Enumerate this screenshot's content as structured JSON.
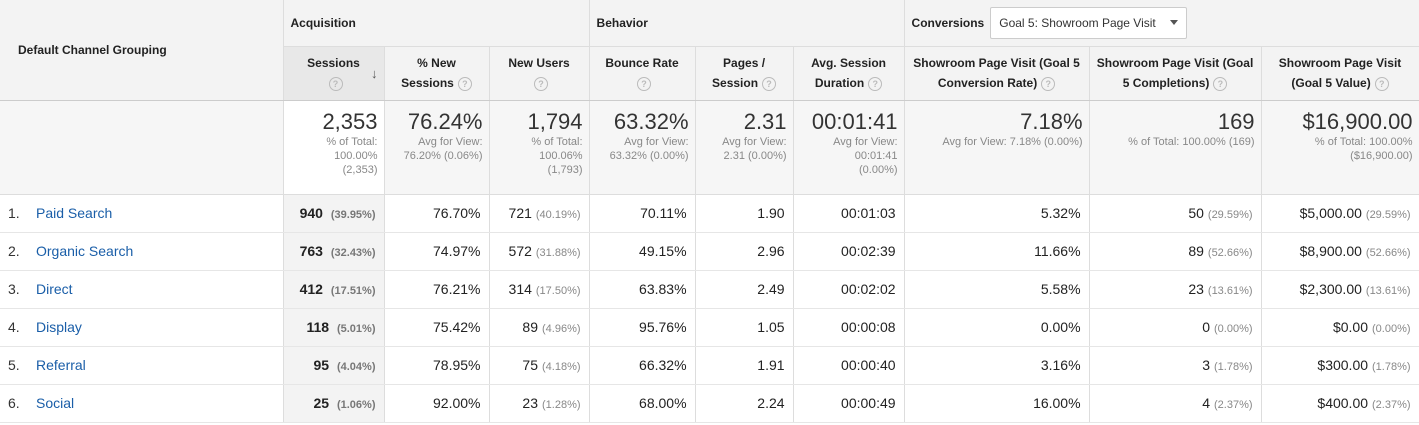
{
  "header": {
    "dimension_label": "Default Channel Grouping",
    "groups": {
      "acquisition": "Acquisition",
      "behavior": "Behavior",
      "conversions": "Conversions"
    },
    "goal_dropdown": "Goal 5: Showroom Page Visit",
    "columns": {
      "sessions": "Sessions",
      "new_sessions_1": "% New",
      "new_sessions_2": "Sessions",
      "new_users": "New Users",
      "bounce_rate": "Bounce Rate",
      "pages_1": "Pages /",
      "pages_2": "Session",
      "duration_1": "Avg. Session",
      "duration_2": "Duration",
      "conv_rate_1": "Showroom Page Visit (Goal 5",
      "conv_rate_2": "Conversion Rate)",
      "completions_1": "Showroom Page Visit (Goal",
      "completions_2": "5 Completions)",
      "value_1": "Showroom Page Visit",
      "value_2": "(Goal 5 Value)"
    }
  },
  "totals": {
    "sessions": {
      "big": "2,353",
      "l1": "% of Total:",
      "l2": "100.00%",
      "l3": "(2,353)"
    },
    "new_sessions": {
      "big": "76.24%",
      "l1": "Avg for View:",
      "l2": "76.20% (0.06%)"
    },
    "new_users": {
      "big": "1,794",
      "l1": "% of Total:",
      "l2": "100.06%",
      "l3": "(1,793)"
    },
    "bounce_rate": {
      "big": "63.32%",
      "l1": "Avg for View:",
      "l2": "63.32% (0.00%)"
    },
    "pages": {
      "big": "2.31",
      "l1": "Avg for View:",
      "l2": "2.31 (0.00%)"
    },
    "duration": {
      "big": "00:01:41",
      "l1": "Avg for View:",
      "l2": "00:01:41",
      "l3": "(0.00%)"
    },
    "conv_rate": {
      "big": "7.18%",
      "l1": "Avg for View: 7.18% (0.00%)"
    },
    "completions": {
      "big": "169",
      "l1": "% of Total: 100.00% (169)"
    },
    "value": {
      "big": "$16,900.00",
      "l1": "% of Total: 100.00%",
      "l2": "($16,900.00)"
    }
  },
  "rows": [
    {
      "idx": "1.",
      "name": "Paid Search",
      "sessions": "940",
      "sessions_pct": "(39.95%)",
      "new_sessions": "76.70%",
      "new_users": "721",
      "new_users_pct": "(40.19%)",
      "bounce": "70.11%",
      "pages": "1.90",
      "duration": "00:01:03",
      "conv_rate": "5.32%",
      "completions": "50",
      "completions_pct": "(29.59%)",
      "value": "$5,000.00",
      "value_pct": "(29.59%)"
    },
    {
      "idx": "2.",
      "name": "Organic Search",
      "sessions": "763",
      "sessions_pct": "(32.43%)",
      "new_sessions": "74.97%",
      "new_users": "572",
      "new_users_pct": "(31.88%)",
      "bounce": "49.15%",
      "pages": "2.96",
      "duration": "00:02:39",
      "conv_rate": "11.66%",
      "completions": "89",
      "completions_pct": "(52.66%)",
      "value": "$8,900.00",
      "value_pct": "(52.66%)"
    },
    {
      "idx": "3.",
      "name": "Direct",
      "sessions": "412",
      "sessions_pct": "(17.51%)",
      "new_sessions": "76.21%",
      "new_users": "314",
      "new_users_pct": "(17.50%)",
      "bounce": "63.83%",
      "pages": "2.49",
      "duration": "00:02:02",
      "conv_rate": "5.58%",
      "completions": "23",
      "completions_pct": "(13.61%)",
      "value": "$2,300.00",
      "value_pct": "(13.61%)"
    },
    {
      "idx": "4.",
      "name": "Display",
      "sessions": "118",
      "sessions_pct": "(5.01%)",
      "new_sessions": "75.42%",
      "new_users": "89",
      "new_users_pct": "(4.96%)",
      "bounce": "95.76%",
      "pages": "1.05",
      "duration": "00:00:08",
      "conv_rate": "0.00%",
      "completions": "0",
      "completions_pct": "(0.00%)",
      "value": "$0.00",
      "value_pct": "(0.00%)"
    },
    {
      "idx": "5.",
      "name": "Referral",
      "sessions": "95",
      "sessions_pct": "(4.04%)",
      "new_sessions": "78.95%",
      "new_users": "75",
      "new_users_pct": "(4.18%)",
      "bounce": "66.32%",
      "pages": "1.91",
      "duration": "00:00:40",
      "conv_rate": "3.16%",
      "completions": "3",
      "completions_pct": "(1.78%)",
      "value": "$300.00",
      "value_pct": "(1.78%)"
    },
    {
      "idx": "6.",
      "name": "Social",
      "sessions": "25",
      "sessions_pct": "(1.06%)",
      "new_sessions": "92.00%",
      "new_users": "23",
      "new_users_pct": "(1.28%)",
      "bounce": "68.00%",
      "pages": "2.24",
      "duration": "00:00:49",
      "conv_rate": "16.00%",
      "completions": "4",
      "completions_pct": "(2.37%)",
      "value": "$400.00",
      "value_pct": "(2.37%)"
    }
  ],
  "icons": {
    "help": "help-icon",
    "sort": "sort-arrow-down-icon",
    "dropdown": "chevron-down-icon"
  }
}
